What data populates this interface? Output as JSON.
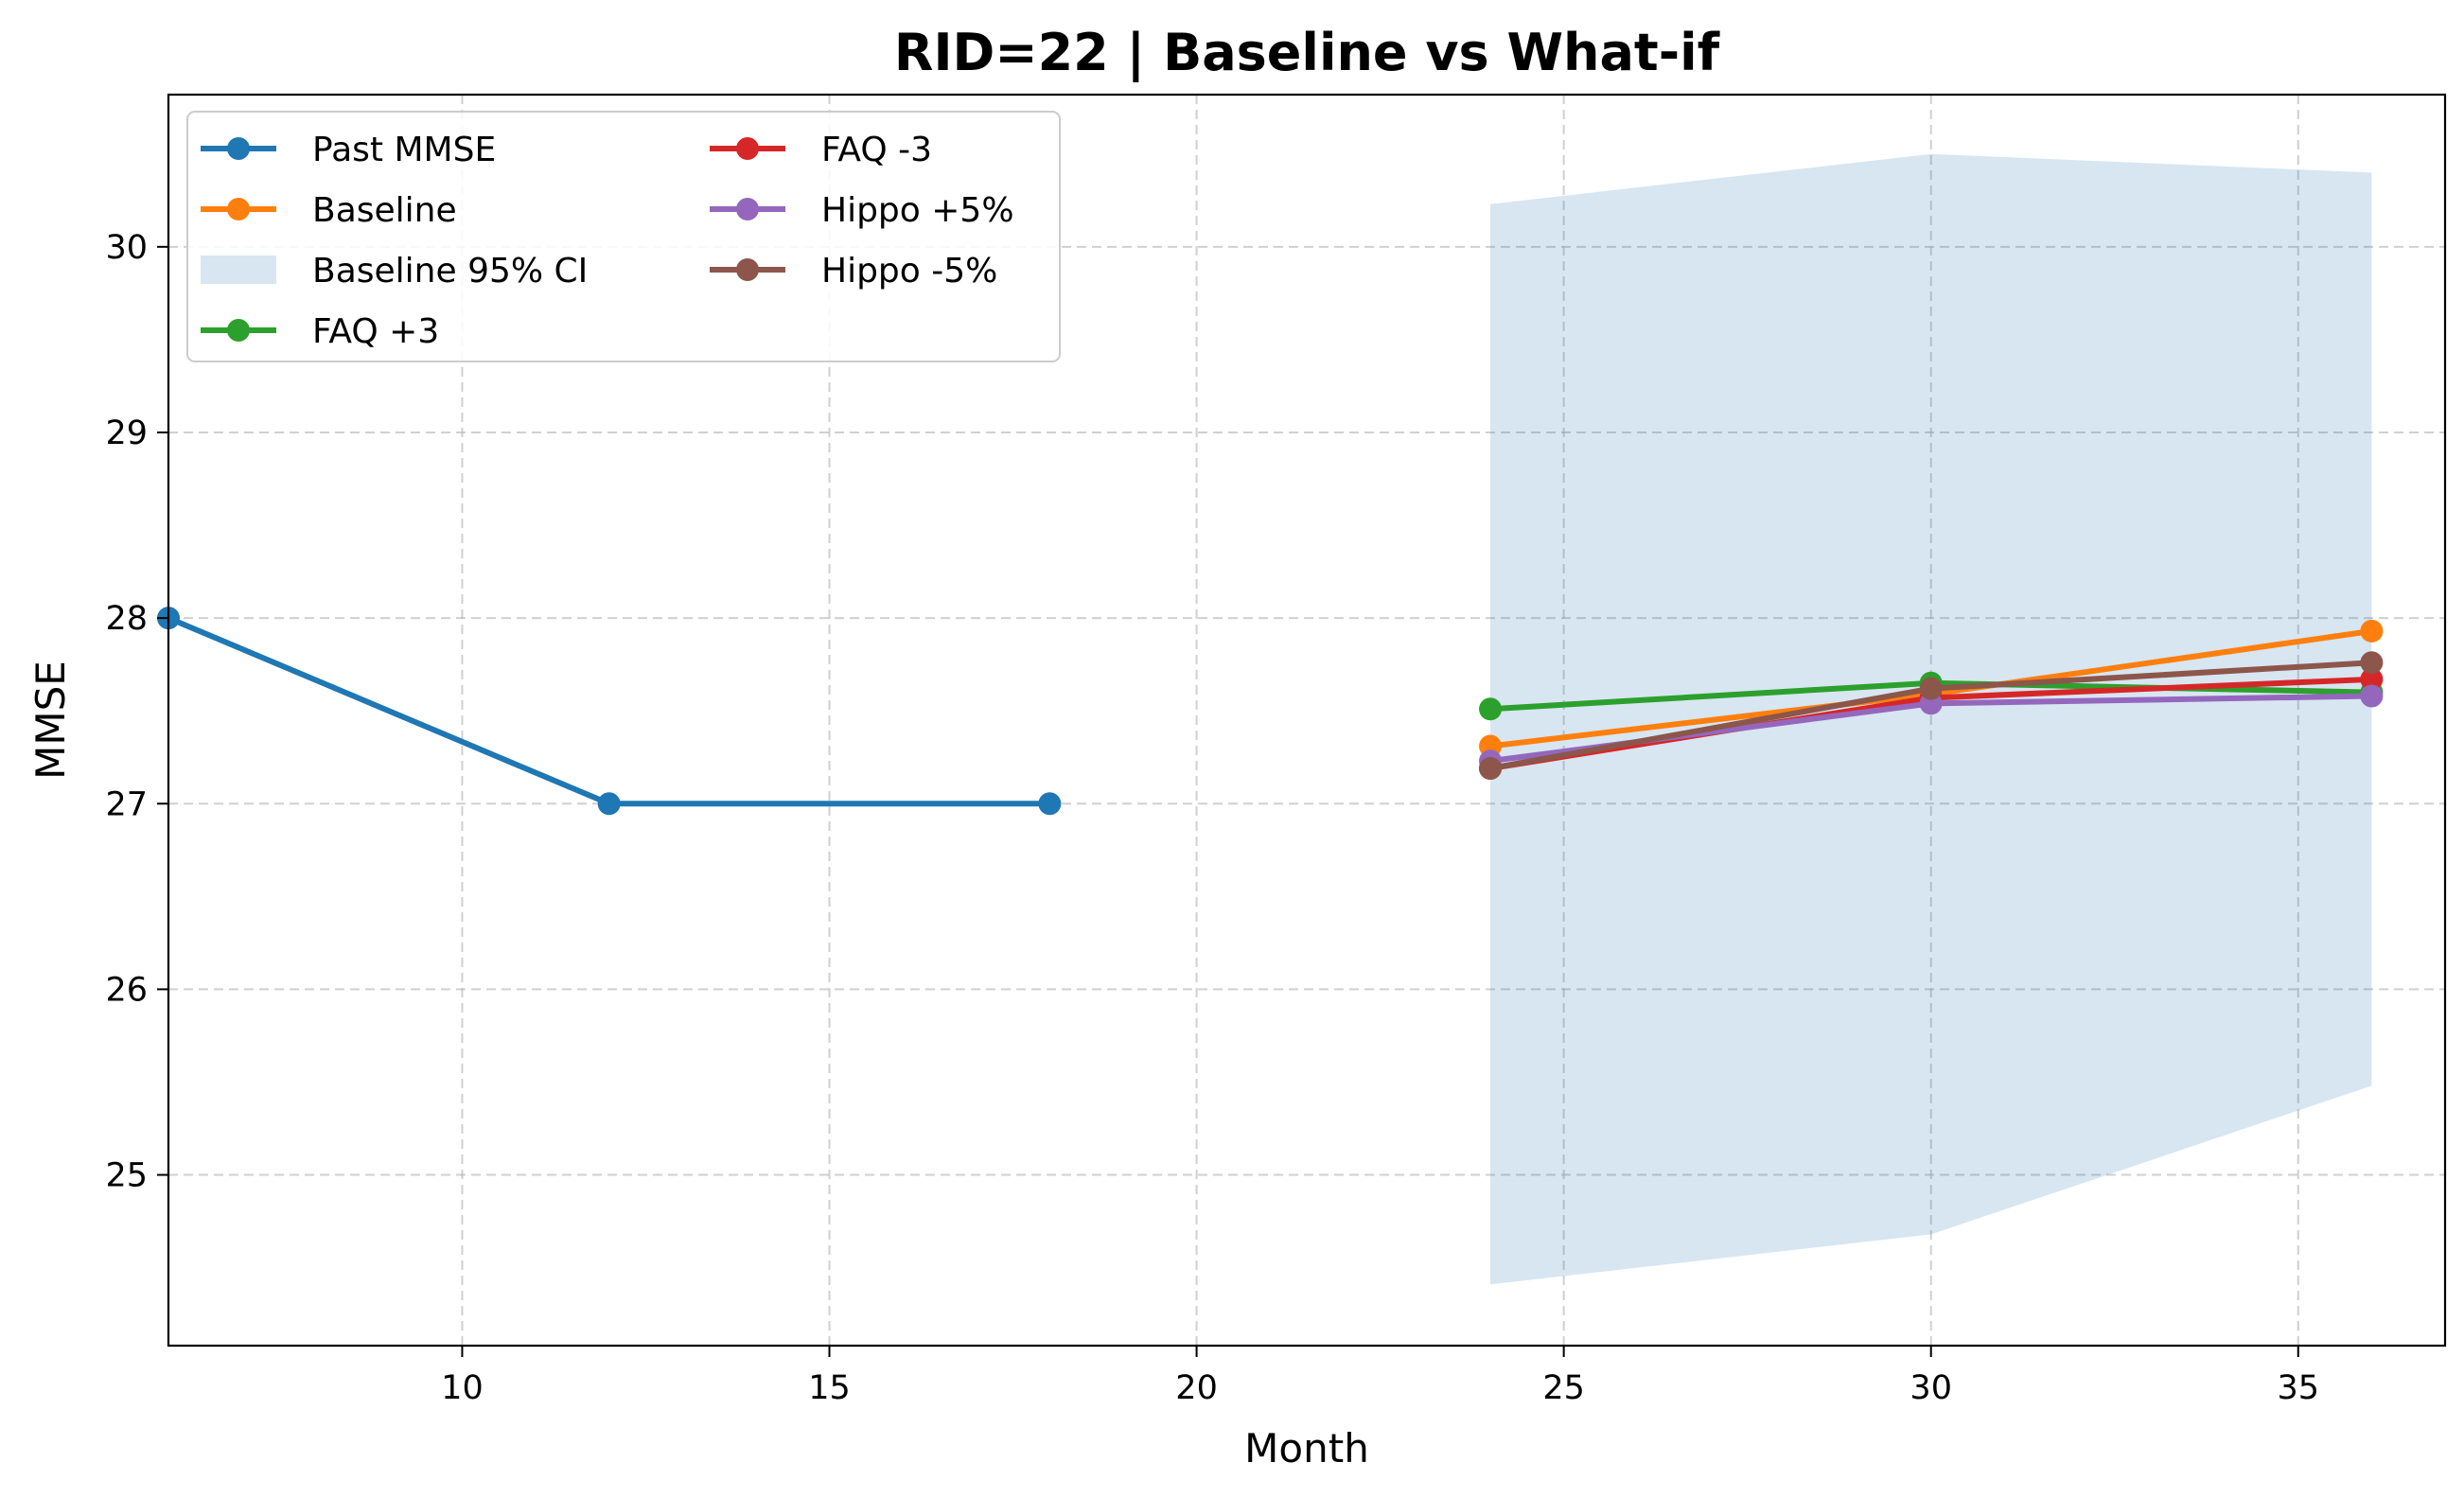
{
  "chart_data": {
    "type": "line",
    "title": "RID=22 | Baseline vs What-if",
    "xlabel": "Month",
    "ylabel": "MMSE",
    "xlim": [
      6,
      37
    ],
    "ylim": [
      24.08,
      30.82
    ],
    "xticks": [
      10,
      15,
      20,
      25,
      30,
      35
    ],
    "yticks": [
      25,
      26,
      27,
      28,
      29,
      30
    ],
    "grid": true,
    "legend_position": "upper-left",
    "series": [
      {
        "name": "Past MMSE",
        "color": "#1f77b4",
        "kind": "line",
        "x": [
          6,
          12,
          18
        ],
        "y": [
          28,
          27,
          27
        ]
      },
      {
        "name": "Baseline",
        "color": "#ff7f0e",
        "kind": "line",
        "x": [
          24,
          30,
          36
        ],
        "y": [
          27.31,
          27.59,
          27.93
        ]
      },
      {
        "name": "Baseline 95% CI",
        "color": "#1f77b4",
        "kind": "band",
        "x": [
          24,
          30,
          36
        ],
        "lower": [
          24.41,
          24.68,
          25.48
        ],
        "upper": [
          30.23,
          30.5,
          30.4
        ]
      },
      {
        "name": "FAQ +3",
        "color": "#2ca02c",
        "kind": "line",
        "x": [
          24,
          30,
          36
        ],
        "y": [
          27.51,
          27.65,
          27.6
        ]
      },
      {
        "name": "FAQ -3",
        "color": "#d62728",
        "kind": "line",
        "x": [
          24,
          30,
          36
        ],
        "y": [
          27.19,
          27.57,
          27.67
        ]
      },
      {
        "name": "Hippo +5%",
        "color": "#9467bd",
        "kind": "line",
        "x": [
          24,
          30,
          36
        ],
        "y": [
          27.23,
          27.54,
          27.58
        ]
      },
      {
        "name": "Hippo -5%",
        "color": "#8c564b",
        "kind": "line",
        "x": [
          24,
          30,
          36
        ],
        "y": [
          27.19,
          27.62,
          27.76
        ]
      }
    ]
  }
}
